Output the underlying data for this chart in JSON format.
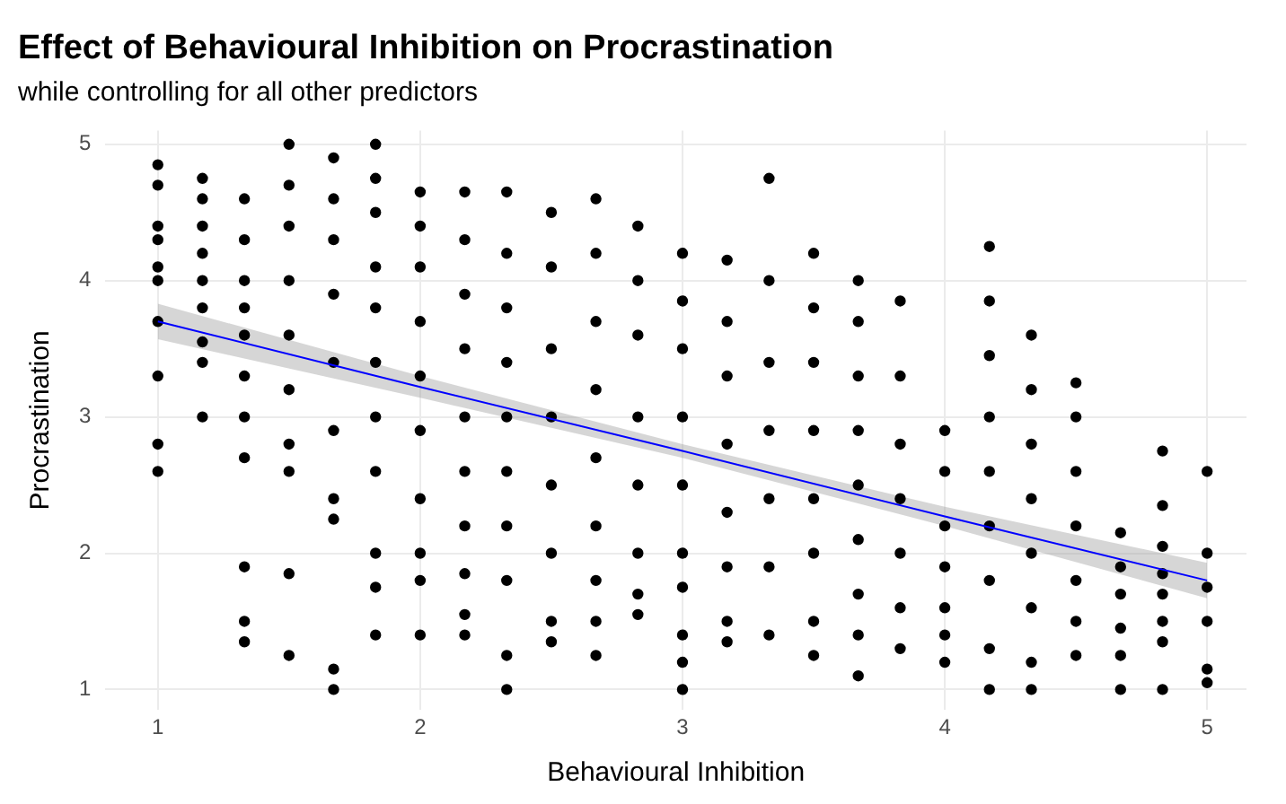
{
  "chart_data": {
    "type": "scatter",
    "title": "Effect of Behavioural Inhibition on Procrastination",
    "subtitle": "while controlling for all other predictors",
    "xlabel": "Behavioural Inhibition",
    "ylabel": "Procrastination",
    "xlim": [
      0.8,
      5.15
    ],
    "ylim": [
      0.85,
      5.1
    ],
    "xticks": [
      1,
      2,
      3,
      4,
      5
    ],
    "yticks": [
      1,
      2,
      3,
      4,
      5
    ],
    "grid": true,
    "series": [
      {
        "color": "#000000",
        "marker": "circle",
        "x": [
          1,
          1,
          1,
          1,
          1,
          1,
          1,
          1,
          1,
          1,
          1.17,
          1.17,
          1.17,
          1.17,
          1.17,
          1.17,
          1.17,
          1.17,
          1.17,
          1.33,
          1.33,
          1.33,
          1.33,
          1.33,
          1.33,
          1.33,
          1.33,
          1.33,
          1.33,
          1.33,
          1.5,
          1.5,
          1.5,
          1.5,
          1.5,
          1.5,
          1.5,
          1.5,
          1.5,
          1.5,
          1.67,
          1.67,
          1.67,
          1.67,
          1.67,
          1.67,
          1.67,
          1.67,
          1.67,
          1.67,
          1.83,
          1.83,
          1.83,
          1.83,
          1.83,
          1.83,
          1.83,
          1.83,
          1.83,
          1.83,
          1.83,
          2,
          2,
          2,
          2,
          2,
          2,
          2,
          2,
          2,
          2,
          2.17,
          2.17,
          2.17,
          2.17,
          2.17,
          2.17,
          2.17,
          2.17,
          2.17,
          2.17,
          2.33,
          2.33,
          2.33,
          2.33,
          2.33,
          2.33,
          2.33,
          2.33,
          2.33,
          2.33,
          2.5,
          2.5,
          2.5,
          2.5,
          2.5,
          2.5,
          2.5,
          2.5,
          2.67,
          2.67,
          2.67,
          2.67,
          2.67,
          2.67,
          2.67,
          2.67,
          2.67,
          2.83,
          2.83,
          2.83,
          2.83,
          2.83,
          2.83,
          2.83,
          2.83,
          3,
          3,
          3,
          3,
          3,
          3,
          3,
          3,
          3,
          3,
          3.17,
          3.17,
          3.17,
          3.17,
          3.17,
          3.17,
          3.17,
          3.17,
          3.33,
          3.33,
          3.33,
          3.33,
          3.33,
          3.33,
          3.33,
          3.5,
          3.5,
          3.5,
          3.5,
          3.5,
          3.5,
          3.5,
          3.5,
          3.67,
          3.67,
          3.67,
          3.67,
          3.67,
          3.67,
          3.67,
          3.67,
          3.67,
          3.83,
          3.83,
          3.83,
          3.83,
          3.83,
          3.83,
          3.83,
          4,
          4,
          4,
          4,
          4,
          4,
          4,
          4.17,
          4.17,
          4.17,
          4.17,
          4.17,
          4.17,
          4.17,
          4.17,
          4.17,
          4.33,
          4.33,
          4.33,
          4.33,
          4.33,
          4.33,
          4.33,
          4.33,
          4.5,
          4.5,
          4.5,
          4.5,
          4.5,
          4.5,
          4.5,
          4.67,
          4.67,
          4.67,
          4.67,
          4.67,
          4.67,
          4.83,
          4.83,
          4.83,
          4.83,
          4.83,
          4.83,
          4.83,
          4.83,
          5,
          5,
          5,
          5,
          5,
          5
        ],
        "values": [
          4.85,
          4.7,
          4.4,
          4.3,
          4.1,
          4.0,
          3.7,
          3.3,
          2.8,
          2.6,
          4.75,
          4.6,
          4.4,
          4.2,
          4.0,
          3.8,
          3.55,
          3.4,
          3.0,
          4.6,
          4.3,
          4.0,
          3.8,
          3.6,
          3.3,
          3.0,
          2.7,
          1.9,
          1.5,
          1.35,
          5.0,
          4.7,
          4.4,
          4.0,
          3.6,
          3.2,
          2.8,
          2.6,
          1.85,
          1.25,
          4.9,
          4.6,
          4.3,
          3.9,
          3.4,
          2.9,
          2.4,
          2.25,
          1.15,
          1.0,
          5.0,
          4.75,
          4.5,
          4.1,
          3.8,
          3.4,
          3.0,
          2.6,
          2.0,
          1.75,
          1.4,
          4.65,
          4.4,
          4.1,
          3.7,
          3.3,
          2.9,
          2.4,
          2.0,
          1.8,
          1.4,
          4.65,
          4.3,
          3.9,
          3.5,
          3.0,
          2.6,
          2.2,
          1.85,
          1.55,
          1.4,
          4.65,
          4.2,
          3.8,
          3.4,
          3.0,
          2.6,
          2.2,
          1.8,
          1.25,
          1.0,
          4.5,
          4.1,
          3.5,
          3.0,
          2.5,
          2.0,
          1.5,
          1.35,
          4.6,
          4.2,
          3.7,
          3.2,
          2.7,
          2.2,
          1.8,
          1.5,
          1.25,
          4.4,
          4.0,
          3.6,
          3.0,
          2.5,
          2.0,
          1.7,
          1.55,
          4.2,
          3.85,
          3.5,
          3.0,
          2.5,
          2.0,
          1.75,
          1.4,
          1.2,
          1.0,
          4.15,
          3.7,
          3.3,
          2.8,
          2.3,
          1.9,
          1.5,
          1.35,
          4.75,
          4.0,
          3.4,
          2.9,
          2.4,
          1.9,
          1.4,
          4.2,
          3.8,
          3.4,
          2.9,
          2.4,
          2.0,
          1.5,
          1.25,
          4.0,
          3.7,
          3.3,
          2.9,
          2.5,
          2.1,
          1.7,
          1.4,
          1.1,
          3.85,
          3.3,
          2.8,
          2.4,
          2.0,
          1.6,
          1.3,
          2.9,
          2.6,
          2.2,
          1.9,
          1.6,
          1.4,
          1.2,
          4.25,
          3.85,
          3.45,
          3.0,
          2.6,
          2.2,
          1.8,
          1.3,
          1.0,
          3.6,
          3.2,
          2.8,
          2.4,
          2.0,
          1.6,
          1.2,
          1.0,
          3.25,
          3.0,
          2.6,
          2.2,
          1.8,
          1.5,
          1.25,
          2.15,
          1.9,
          1.7,
          1.45,
          1.25,
          1.0,
          2.75,
          2.35,
          2.05,
          1.85,
          1.7,
          1.5,
          1.35,
          1.0,
          2.6,
          2.0,
          1.75,
          1.5,
          1.15,
          1.05
        ]
      },
      {
        "type": "line",
        "color": "#0000ff",
        "x": [
          1,
          2,
          3,
          4,
          5
        ],
        "values": [
          3.7,
          3.22,
          2.75,
          2.27,
          1.8
        ],
        "lower": [
          3.57,
          3.14,
          2.7,
          2.2,
          1.67
        ],
        "upper": [
          3.83,
          3.3,
          2.8,
          2.34,
          1.93
        ]
      }
    ]
  }
}
